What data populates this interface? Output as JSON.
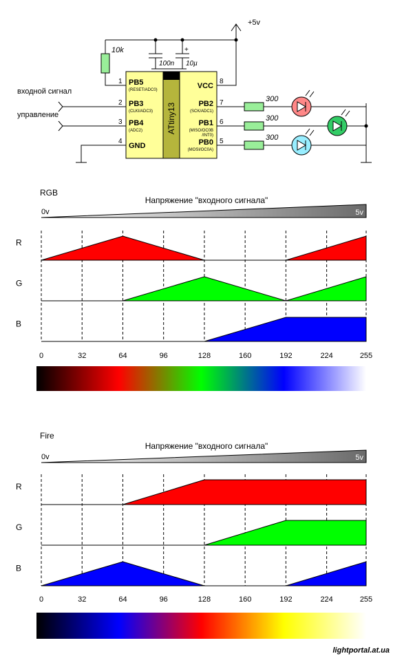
{
  "schematic": {
    "supply_label": "+5v",
    "r_pullup_label": "10k",
    "c1_label": "100n",
    "c2_label": "10µ",
    "c2_polarity": "+",
    "chip_name": "ATtiny13",
    "input_label": "входной сигнал",
    "control_label": "управление",
    "pins_left": [
      {
        "num": "1",
        "name": "PB5",
        "sub": "(RESET/ADC0)"
      },
      {
        "num": "2",
        "name": "PB3",
        "sub": "(CLKI/ADC3)"
      },
      {
        "num": "3",
        "name": "PB4",
        "sub": "(ADC2)"
      },
      {
        "num": "4",
        "name": "GND",
        "sub": ""
      }
    ],
    "pins_right": [
      {
        "num": "8",
        "name": "VCC",
        "sub": "",
        "sub2": ""
      },
      {
        "num": "7",
        "name": "PB2",
        "sub": "(SCK/ADC1)",
        "sub2": ""
      },
      {
        "num": "6",
        "name": "PB1",
        "sub": "(MISO/OC0B",
        "sub2": "/INT0)"
      },
      {
        "num": "5",
        "name": "PB0",
        "sub": "(MOSI/OC0A)",
        "sub2": ""
      }
    ],
    "resistor_label": "300",
    "colors": {
      "chip": "#ffff99",
      "chip_center": "#b5b53c",
      "resistor": "#99ee99",
      "pullup": "#99ee99",
      "led_r": "#ff8888",
      "led_g": "#33cc66",
      "led_b": "#99eeff"
    }
  },
  "charts": [
    {
      "title": "RGB",
      "ramp": {
        "label": "Напряжение \"входного сигнала\"",
        "left": "0v",
        "right": "5v"
      },
      "x_ticks": [
        "0",
        "32",
        "64",
        "96",
        "128",
        "160",
        "192",
        "224",
        "255"
      ],
      "channels": [
        {
          "label": "R",
          "color": "#ff0000",
          "points": [
            [
              0,
              0
            ],
            [
              64,
              1
            ],
            [
              128,
              0
            ],
            [
              192,
              0
            ],
            [
              255,
              1
            ]
          ]
        },
        {
          "label": "G",
          "color": "#00ff00",
          "points": [
            [
              0,
              0
            ],
            [
              64,
              0
            ],
            [
              128,
              1
            ],
            [
              192,
              0
            ],
            [
              255,
              1
            ]
          ]
        },
        {
          "label": "B",
          "color": "#0000ff",
          "points": [
            [
              0,
              0
            ],
            [
              128,
              0
            ],
            [
              192,
              1
            ],
            [
              255,
              1
            ]
          ]
        }
      ],
      "gradient": [
        "#000000",
        "#ff0000",
        "#00ff00",
        "#0000ff",
        "#ffffff"
      ]
    },
    {
      "title": "Fire",
      "ramp": {
        "label": "Напряжение \"входного сигнала\"",
        "left": "0v",
        "right": "5v"
      },
      "x_ticks": [
        "0",
        "32",
        "64",
        "96",
        "128",
        "160",
        "192",
        "224",
        "255"
      ],
      "channels": [
        {
          "label": "R",
          "color": "#ff0000",
          "points": [
            [
              0,
              0
            ],
            [
              64,
              0
            ],
            [
              128,
              1
            ],
            [
              255,
              1
            ]
          ]
        },
        {
          "label": "G",
          "color": "#00ff00",
          "points": [
            [
              0,
              0
            ],
            [
              128,
              0
            ],
            [
              192,
              1
            ],
            [
              255,
              1
            ]
          ]
        },
        {
          "label": "B",
          "color": "#0000ff",
          "points": [
            [
              0,
              0
            ],
            [
              64,
              1
            ],
            [
              128,
              0
            ],
            [
              192,
              0
            ],
            [
              255,
              1
            ]
          ]
        }
      ],
      "gradient": [
        "#000000",
        "#0000ff",
        "#ff0000",
        "#ffff00",
        "#ffffff"
      ]
    }
  ],
  "watermark": "lightportal.at.ua"
}
